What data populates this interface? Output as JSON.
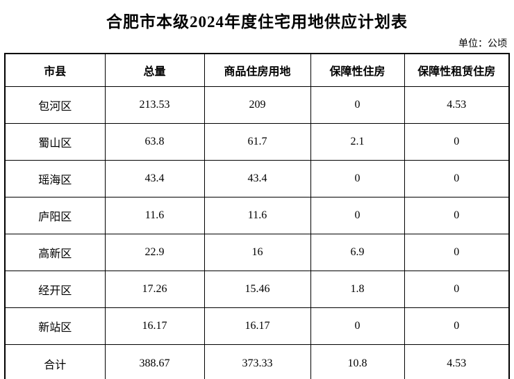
{
  "page": {
    "title": "合肥市本级2024年度住宅用地供应计划表",
    "unit_label": "单位：公顷"
  },
  "chart_data": {
    "type": "table",
    "title": "合肥市本级2024年度住宅用地供应计划表",
    "unit": "公顷",
    "headers": [
      "市县",
      "总量",
      "商品住房用地",
      "保障性住房",
      "保障性租赁住房"
    ],
    "rows": [
      {
        "name": "包河区",
        "values": [
          "213.53",
          "209",
          "0",
          "4.53"
        ]
      },
      {
        "name": "蜀山区",
        "values": [
          "63.8",
          "61.7",
          "2.1",
          "0"
        ]
      },
      {
        "name": "瑶海区",
        "values": [
          "43.4",
          "43.4",
          "0",
          "0"
        ]
      },
      {
        "name": "庐阳区",
        "values": [
          "11.6",
          "11.6",
          "0",
          "0"
        ]
      },
      {
        "name": "高新区",
        "values": [
          "22.9",
          "16",
          "6.9",
          "0"
        ]
      },
      {
        "name": "经开区",
        "values": [
          "17.26",
          "15.46",
          "1.8",
          "0"
        ]
      },
      {
        "name": "新站区",
        "values": [
          "16.17",
          "16.17",
          "0",
          "0"
        ]
      },
      {
        "name": "合计",
        "values": [
          "388.67",
          "373.33",
          "10.8",
          "4.53"
        ]
      }
    ]
  }
}
